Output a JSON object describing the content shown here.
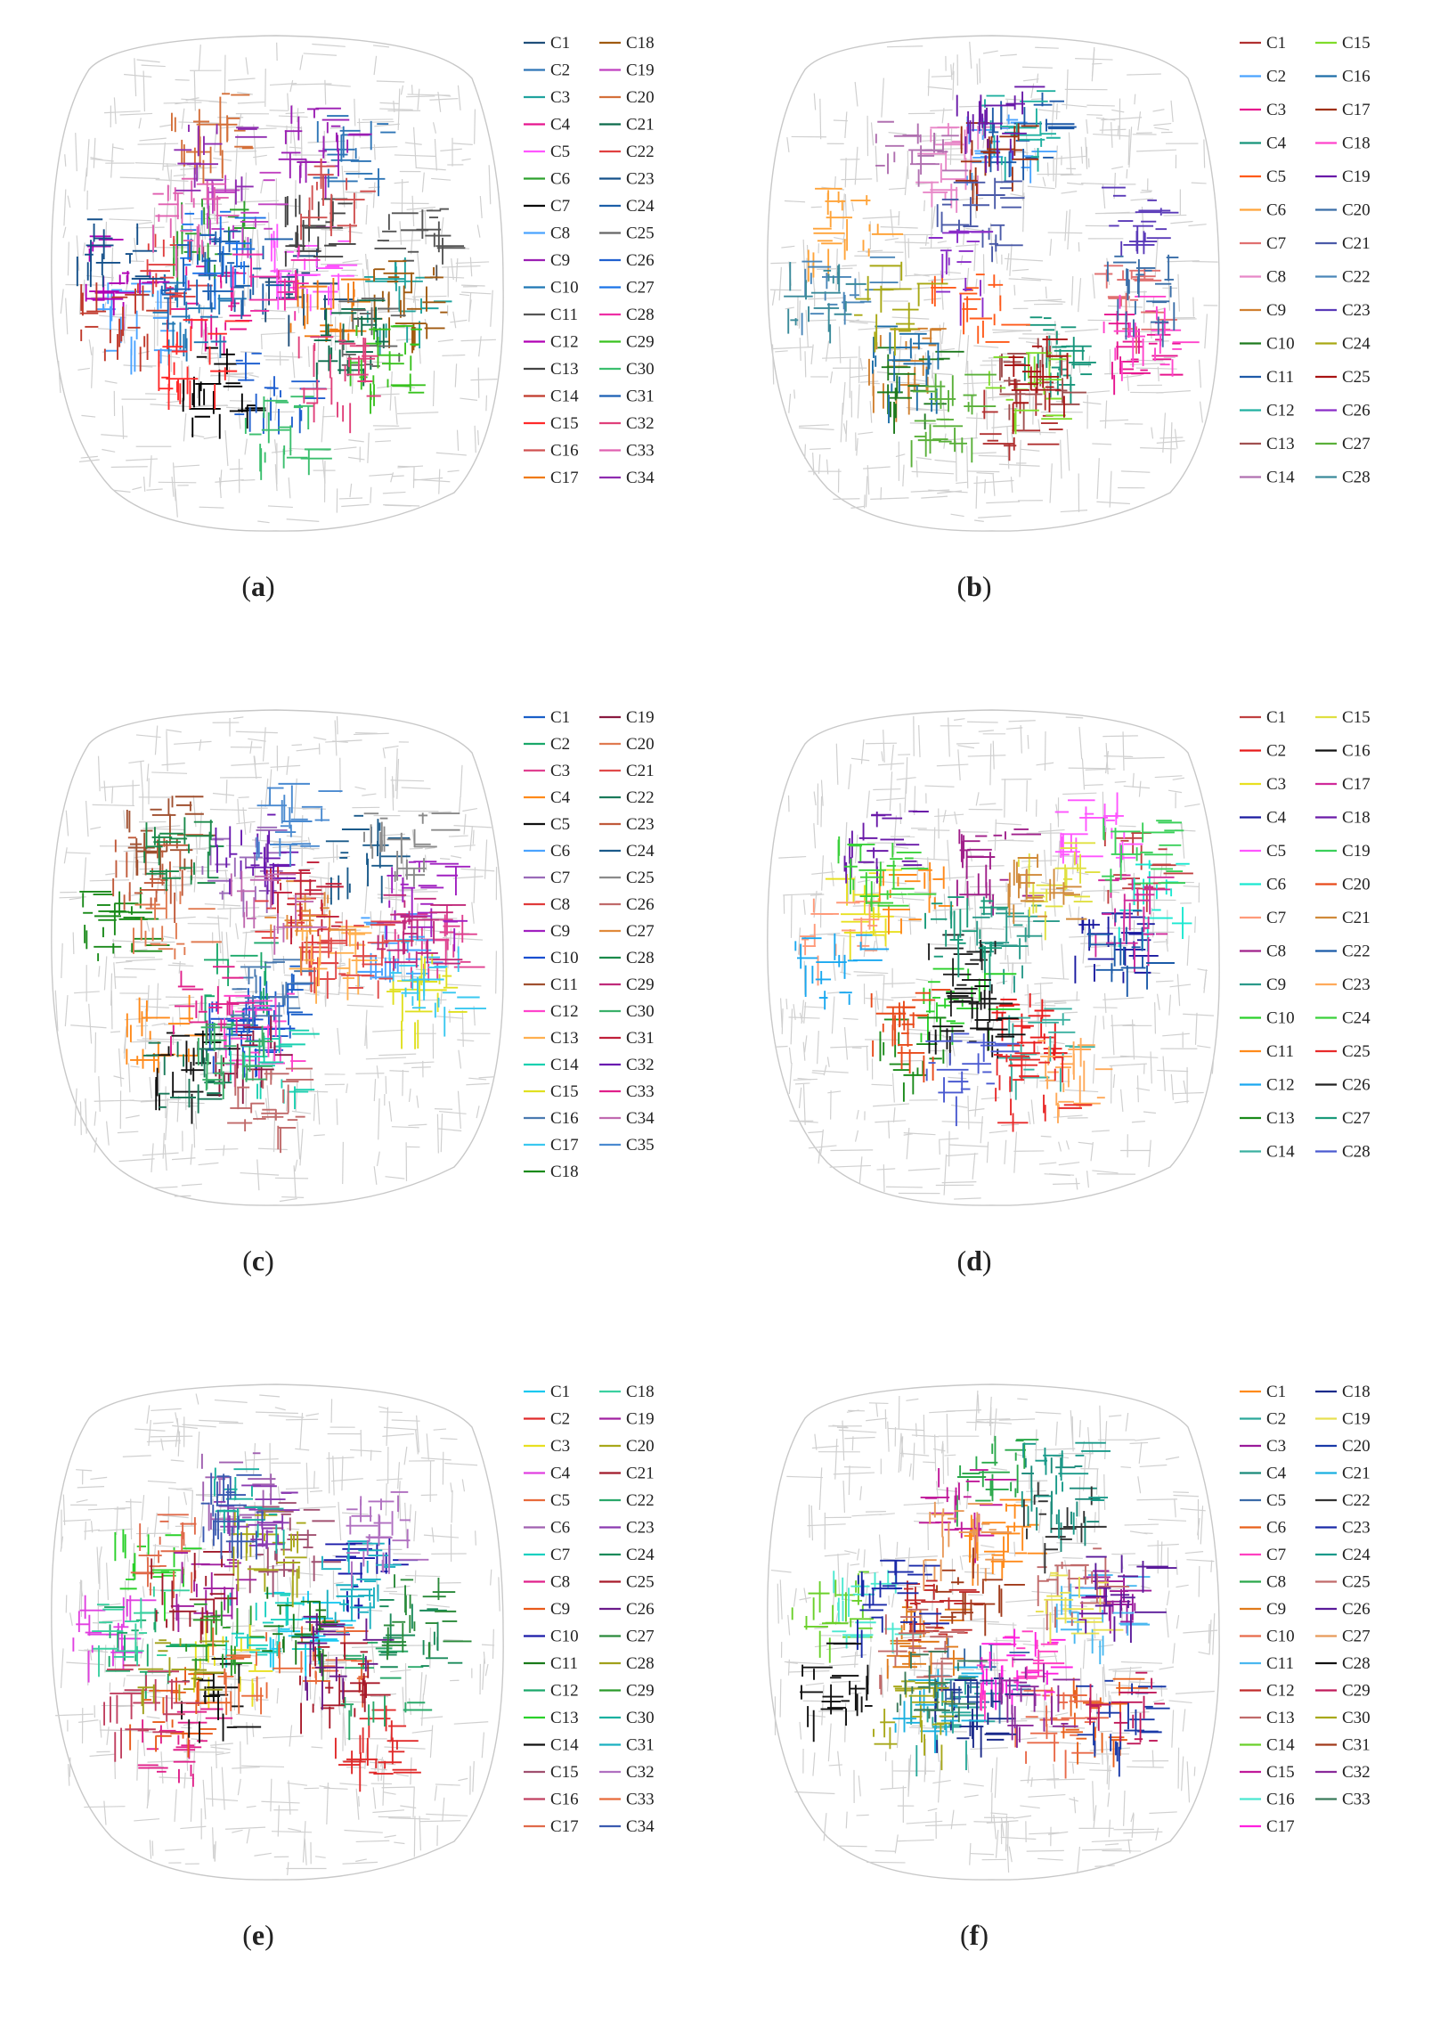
{
  "figure": {
    "panels": [
      {
        "id": "a",
        "label": "a",
        "legend_columns": 2,
        "entries": [
          {
            "name": "C1",
            "color": "#1f4e79"
          },
          {
            "name": "C2",
            "color": "#2e75b6"
          },
          {
            "name": "C3",
            "color": "#20a39e"
          },
          {
            "name": "C4",
            "color": "#e6158e"
          },
          {
            "name": "C5",
            "color": "#ff55ff"
          },
          {
            "name": "C6",
            "color": "#2ca02c"
          },
          {
            "name": "C7",
            "color": "#000000"
          },
          {
            "name": "C8",
            "color": "#4aa3ff"
          },
          {
            "name": "C9",
            "color": "#9b1fb3"
          },
          {
            "name": "C10",
            "color": "#1f77b4"
          },
          {
            "name": "C11",
            "color": "#555555"
          },
          {
            "name": "C12",
            "color": "#b000b5"
          },
          {
            "name": "C13",
            "color": "#444444"
          },
          {
            "name": "C14",
            "color": "#c0392b"
          },
          {
            "name": "C15",
            "color": "#ff2a2a"
          },
          {
            "name": "C16",
            "color": "#d05050"
          },
          {
            "name": "C17",
            "color": "#f07a10"
          },
          {
            "name": "C18",
            "color": "#a05a10"
          },
          {
            "name": "C19",
            "color": "#c040c0"
          },
          {
            "name": "C20",
            "color": "#d4703a"
          },
          {
            "name": "C21",
            "color": "#0b6b4b"
          },
          {
            "name": "C22",
            "color": "#e04040"
          },
          {
            "name": "C23",
            "color": "#14508a"
          },
          {
            "name": "C24",
            "color": "#1c5fa8"
          },
          {
            "name": "C25",
            "color": "#666666"
          },
          {
            "name": "C26",
            "color": "#2060d0"
          },
          {
            "name": "C27",
            "color": "#1a73e8"
          },
          {
            "name": "C28",
            "color": "#ee2fa4"
          },
          {
            "name": "C29",
            "color": "#39c21f"
          },
          {
            "name": "C30",
            "color": "#3bbf6e"
          },
          {
            "name": "C31",
            "color": "#1a5fb4"
          },
          {
            "name": "C32",
            "color": "#e0407a"
          },
          {
            "name": "C33",
            "color": "#e060b0"
          },
          {
            "name": "C34",
            "color": "#8e2cb0"
          }
        ]
      },
      {
        "id": "b",
        "label": "b",
        "legend_columns": 2,
        "entries": [
          {
            "name": "C1",
            "color": "#b03030"
          },
          {
            "name": "C2",
            "color": "#4aa3ff"
          },
          {
            "name": "C3",
            "color": "#e6158e"
          },
          {
            "name": "C4",
            "color": "#16957a"
          },
          {
            "name": "C5",
            "color": "#ff5a1a"
          },
          {
            "name": "C6",
            "color": "#ffa43a"
          },
          {
            "name": "C7",
            "color": "#e07070"
          },
          {
            "name": "C8",
            "color": "#e888c8"
          },
          {
            "name": "C9",
            "color": "#d08030"
          },
          {
            "name": "C10",
            "color": "#1e7a1e"
          },
          {
            "name": "C11",
            "color": "#1e5aa8"
          },
          {
            "name": "C12",
            "color": "#20b0a0"
          },
          {
            "name": "C13",
            "color": "#a05050"
          },
          {
            "name": "C14",
            "color": "#b070b0"
          },
          {
            "name": "C15",
            "color": "#7fdc2a"
          },
          {
            "name": "C16",
            "color": "#1d6ea8"
          },
          {
            "name": "C17",
            "color": "#a03010"
          },
          {
            "name": "C18",
            "color": "#ff44cc"
          },
          {
            "name": "C19",
            "color": "#6a1aa8"
          },
          {
            "name": "C20",
            "color": "#3a6ea8"
          },
          {
            "name": "C21",
            "color": "#4a5aa8"
          },
          {
            "name": "C22",
            "color": "#4a86b8"
          },
          {
            "name": "C23",
            "color": "#5a3ab8"
          },
          {
            "name": "C24",
            "color": "#a8a814"
          },
          {
            "name": "C25",
            "color": "#a81414"
          },
          {
            "name": "C26",
            "color": "#8a2cc8"
          },
          {
            "name": "C27",
            "color": "#5ab03a"
          },
          {
            "name": "C28",
            "color": "#3a8a9a"
          }
        ]
      },
      {
        "id": "c",
        "label": "c",
        "legend_columns": 2,
        "entries": [
          {
            "name": "C1",
            "color": "#1a5fc8"
          },
          {
            "name": "C2",
            "color": "#1aa86a"
          },
          {
            "name": "C3",
            "color": "#e04090"
          },
          {
            "name": "C4",
            "color": "#ff8a1a"
          },
          {
            "name": "C5",
            "color": "#111111"
          },
          {
            "name": "C6",
            "color": "#4aa3ff"
          },
          {
            "name": "C7",
            "color": "#9a6ab8"
          },
          {
            "name": "C8",
            "color": "#e03a3a"
          },
          {
            "name": "C9",
            "color": "#a020c0"
          },
          {
            "name": "C10",
            "color": "#1a4fd0"
          },
          {
            "name": "C11",
            "color": "#a05030"
          },
          {
            "name": "C12",
            "color": "#ff44cc"
          },
          {
            "name": "C13",
            "color": "#ffb050"
          },
          {
            "name": "C14",
            "color": "#1ad0b0"
          },
          {
            "name": "C15",
            "color": "#e0e020"
          },
          {
            "name": "C16",
            "color": "#4a7ab0"
          },
          {
            "name": "C17",
            "color": "#3ac8f0"
          },
          {
            "name": "C18",
            "color": "#1a8a1a"
          },
          {
            "name": "C19",
            "color": "#8a1a40"
          },
          {
            "name": "C20",
            "color": "#e07a50"
          },
          {
            "name": "C21",
            "color": "#e04a4a"
          },
          {
            "name": "C22",
            "color": "#1a7a5a"
          },
          {
            "name": "C23",
            "color": "#c05a3a"
          },
          {
            "name": "C24",
            "color": "#1a5a8a"
          },
          {
            "name": "C25",
            "color": "#8a8a8a"
          },
          {
            "name": "C26",
            "color": "#c06a6a"
          },
          {
            "name": "C27",
            "color": "#e08a3a"
          },
          {
            "name": "C28",
            "color": "#1a8a4a"
          },
          {
            "name": "C29",
            "color": "#c02a7a"
          },
          {
            "name": "C30",
            "color": "#3ab06a"
          },
          {
            "name": "C31",
            "color": "#c0203a"
          },
          {
            "name": "C32",
            "color": "#6a1ab0"
          },
          {
            "name": "C33",
            "color": "#e0208a"
          },
          {
            "name": "C34",
            "color": "#c06ab0"
          },
          {
            "name": "C35",
            "color": "#4a8ad0"
          }
        ]
      },
      {
        "id": "d",
        "label": "d",
        "legend_columns": 2,
        "entries": [
          {
            "name": "C1",
            "color": "#c04040"
          },
          {
            "name": "C2",
            "color": "#e81a1a"
          },
          {
            "name": "C3",
            "color": "#e8e020"
          },
          {
            "name": "C4",
            "color": "#1a1aa0"
          },
          {
            "name": "C5",
            "color": "#ff55ff"
          },
          {
            "name": "C6",
            "color": "#1ae8d0"
          },
          {
            "name": "C7",
            "color": "#ff9a7a"
          },
          {
            "name": "C8",
            "color": "#a0208a"
          },
          {
            "name": "C9",
            "color": "#2a9a8a"
          },
          {
            "name": "C10",
            "color": "#2ad02a"
          },
          {
            "name": "C11",
            "color": "#ff8a1a"
          },
          {
            "name": "C12",
            "color": "#1aa8f0"
          },
          {
            "name": "C13",
            "color": "#1a8a1a"
          },
          {
            "name": "C14",
            "color": "#3ab0a0"
          },
          {
            "name": "C15",
            "color": "#e0e040"
          },
          {
            "name": "C16",
            "color": "#111111"
          },
          {
            "name": "C17",
            "color": "#d02a9a"
          },
          {
            "name": "C18",
            "color": "#6a1aa8"
          },
          {
            "name": "C19",
            "color": "#3ad05a"
          },
          {
            "name": "C20",
            "color": "#e84a1a"
          },
          {
            "name": "C21",
            "color": "#d08a3a"
          },
          {
            "name": "C22",
            "color": "#1a5aa8"
          },
          {
            "name": "C23",
            "color": "#ffaa5a"
          },
          {
            "name": "C24",
            "color": "#3ad03a"
          },
          {
            "name": "C25",
            "color": "#e82a2a"
          },
          {
            "name": "C26",
            "color": "#222222"
          },
          {
            "name": "C27",
            "color": "#1a9a7a"
          },
          {
            "name": "C28",
            "color": "#4a5ad0"
          }
        ]
      },
      {
        "id": "e",
        "label": "e",
        "legend_columns": 2,
        "entries": [
          {
            "name": "C1",
            "color": "#1ac8f0"
          },
          {
            "name": "C2",
            "color": "#e02a2a"
          },
          {
            "name": "C3",
            "color": "#e8e020"
          },
          {
            "name": "C4",
            "color": "#e040e0"
          },
          {
            "name": "C5",
            "color": "#e86a3a"
          },
          {
            "name": "C6",
            "color": "#a060b0"
          },
          {
            "name": "C7",
            "color": "#1ad0c0"
          },
          {
            "name": "C8",
            "color": "#e0208a"
          },
          {
            "name": "C9",
            "color": "#e85a1a"
          },
          {
            "name": "C10",
            "color": "#1a1aa8"
          },
          {
            "name": "C11",
            "color": "#1a7a1a"
          },
          {
            "name": "C12",
            "color": "#1aa86a"
          },
          {
            "name": "C13",
            "color": "#2ad02a"
          },
          {
            "name": "C14",
            "color": "#111111"
          },
          {
            "name": "C15",
            "color": "#a05070"
          },
          {
            "name": "C16",
            "color": "#c04060"
          },
          {
            "name": "C17",
            "color": "#e06a4a"
          },
          {
            "name": "C18",
            "color": "#3ad0a0"
          },
          {
            "name": "C19",
            "color": "#a020a0"
          },
          {
            "name": "C20",
            "color": "#a8a81a"
          },
          {
            "name": "C21",
            "color": "#a01a2a"
          },
          {
            "name": "C22",
            "color": "#2aa86a"
          },
          {
            "name": "C23",
            "color": "#8a3ab0"
          },
          {
            "name": "C24",
            "color": "#1a8a5a"
          },
          {
            "name": "C25",
            "color": "#a81a2a"
          },
          {
            "name": "C26",
            "color": "#6a1a8a"
          },
          {
            "name": "C27",
            "color": "#2a8a3a"
          },
          {
            "name": "C28",
            "color": "#a0a01a"
          },
          {
            "name": "C29",
            "color": "#2a9a2a"
          },
          {
            "name": "C30",
            "color": "#1ab0a0"
          },
          {
            "name": "C31",
            "color": "#1ab0c0"
          },
          {
            "name": "C32",
            "color": "#b070c0"
          },
          {
            "name": "C33",
            "color": "#e86a3a"
          },
          {
            "name": "C34",
            "color": "#3a5ab0"
          }
        ]
      },
      {
        "id": "f",
        "label": "f",
        "legend_columns": 2,
        "entries": [
          {
            "name": "C1",
            "color": "#ff8a1a"
          },
          {
            "name": "C2",
            "color": "#2aa89a"
          },
          {
            "name": "C3",
            "color": "#9a1a9a"
          },
          {
            "name": "C4",
            "color": "#1a8a7a"
          },
          {
            "name": "C5",
            "color": "#3a6aa8"
          },
          {
            "name": "C6",
            "color": "#e8601a"
          },
          {
            "name": "C7",
            "color": "#ff40c0"
          },
          {
            "name": "C8",
            "color": "#2aa84a"
          },
          {
            "name": "C9",
            "color": "#e07a1a"
          },
          {
            "name": "C10",
            "color": "#e86a4a"
          },
          {
            "name": "C11",
            "color": "#4ab8f0"
          },
          {
            "name": "C12",
            "color": "#c02a2a"
          },
          {
            "name": "C13",
            "color": "#c06a6a"
          },
          {
            "name": "C14",
            "color": "#6ad02a"
          },
          {
            "name": "C15",
            "color": "#c01a9a"
          },
          {
            "name": "C16",
            "color": "#4ae8d0"
          },
          {
            "name": "C17",
            "color": "#ff20e0"
          },
          {
            "name": "C18",
            "color": "#1a2a8a"
          },
          {
            "name": "C19",
            "color": "#e8e050"
          },
          {
            "name": "C20",
            "color": "#1a3aa8"
          },
          {
            "name": "C21",
            "color": "#1ab0e0"
          },
          {
            "name": "C22",
            "color": "#333333"
          },
          {
            "name": "C23",
            "color": "#1a2aa8"
          },
          {
            "name": "C24",
            "color": "#1a9a8a"
          },
          {
            "name": "C25",
            "color": "#c06a6a"
          },
          {
            "name": "C26",
            "color": "#5a1a9a"
          },
          {
            "name": "C27",
            "color": "#e89a5a"
          },
          {
            "name": "C28",
            "color": "#111111"
          },
          {
            "name": "C29",
            "color": "#c01a5a"
          },
          {
            "name": "C30",
            "color": "#a8a81a"
          },
          {
            "name": "C31",
            "color": "#a03a1a"
          },
          {
            "name": "C32",
            "color": "#8a2a9a"
          },
          {
            "name": "C33",
            "color": "#3a7a5a"
          }
        ]
      }
    ]
  }
}
